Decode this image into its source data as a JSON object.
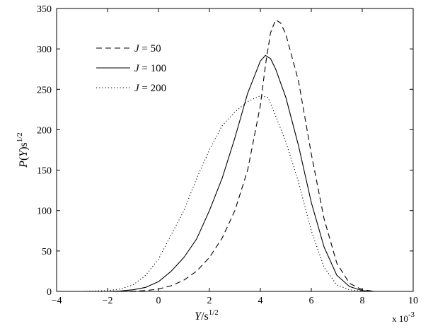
{
  "chart_data": {
    "type": "line",
    "xlabel": "Y/s^{1/2}",
    "ylabel": "P(Y)s^{1/2}",
    "x_multiplier": "x 10^{-3}",
    "xlim": [
      -4,
      10
    ],
    "ylim": [
      0,
      350
    ],
    "xticks": [
      -4,
      -2,
      0,
      2,
      4,
      6,
      8,
      10
    ],
    "yticks": [
      0,
      50,
      100,
      150,
      200,
      250,
      300,
      350
    ],
    "grid": false,
    "legend_position": "top-left",
    "series": [
      {
        "name": "J = 50",
        "style": "dashed",
        "color": "#000000",
        "points": [
          [
            -4,
            0
          ],
          [
            -2,
            0
          ],
          [
            -1,
            0.3
          ],
          [
            -0.5,
            1
          ],
          [
            0,
            3
          ],
          [
            0.5,
            7
          ],
          [
            1,
            14
          ],
          [
            1.5,
            25
          ],
          [
            2,
            42
          ],
          [
            2.5,
            66
          ],
          [
            3,
            100
          ],
          [
            3.5,
            150
          ],
          [
            4,
            230
          ],
          [
            4.2,
            280
          ],
          [
            4.4,
            320
          ],
          [
            4.6,
            336
          ],
          [
            4.8,
            332
          ],
          [
            5,
            318
          ],
          [
            5.5,
            260
          ],
          [
            6,
            170
          ],
          [
            6.5,
            90
          ],
          [
            7,
            35
          ],
          [
            7.5,
            10
          ],
          [
            8,
            2
          ],
          [
            8.5,
            0
          ],
          [
            10,
            0
          ]
        ]
      },
      {
        "name": "J = 100",
        "style": "solid",
        "color": "#000000",
        "points": [
          [
            -4,
            0
          ],
          [
            -2,
            0
          ],
          [
            -1.5,
            0.5
          ],
          [
            -1,
            2
          ],
          [
            -0.5,
            5
          ],
          [
            0,
            12
          ],
          [
            0.5,
            25
          ],
          [
            1,
            42
          ],
          [
            1.5,
            65
          ],
          [
            2,
            100
          ],
          [
            2.5,
            140
          ],
          [
            3,
            190
          ],
          [
            3.5,
            245
          ],
          [
            4,
            285
          ],
          [
            4.2,
            292
          ],
          [
            4.4,
            288
          ],
          [
            4.6,
            275
          ],
          [
            5,
            240
          ],
          [
            5.5,
            180
          ],
          [
            6,
            110
          ],
          [
            6.5,
            55
          ],
          [
            7,
            20
          ],
          [
            7.5,
            6
          ],
          [
            8,
            1
          ],
          [
            8.5,
            0
          ],
          [
            10,
            0
          ]
        ]
      },
      {
        "name": "J = 200",
        "style": "dotted",
        "color": "#000000",
        "points": [
          [
            -4,
            0
          ],
          [
            -3,
            0
          ],
          [
            -2,
            1
          ],
          [
            -1.5,
            3
          ],
          [
            -1,
            8
          ],
          [
            -0.5,
            20
          ],
          [
            0,
            40
          ],
          [
            0.5,
            70
          ],
          [
            1,
            100
          ],
          [
            1.5,
            140
          ],
          [
            2,
            175
          ],
          [
            2.5,
            205
          ],
          [
            3,
            222
          ],
          [
            3.5,
            235
          ],
          [
            4,
            242
          ],
          [
            4.3,
            240
          ],
          [
            4.5,
            225
          ],
          [
            5,
            185
          ],
          [
            5.5,
            135
          ],
          [
            6,
            75
          ],
          [
            6.5,
            30
          ],
          [
            7,
            8
          ],
          [
            7.5,
            2
          ],
          [
            8,
            0
          ],
          [
            10,
            0
          ]
        ]
      }
    ]
  }
}
